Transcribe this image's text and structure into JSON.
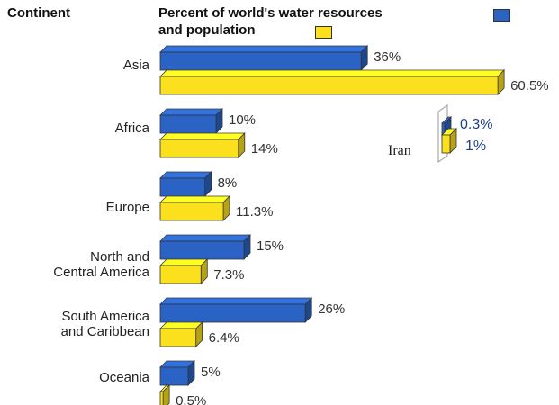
{
  "header": {
    "column_label": "Continent",
    "title_line1": "Percent of world's water resources",
    "title_line2": "and population"
  },
  "chart_data": {
    "type": "bar",
    "orientation": "horizontal",
    "title": "Percent of world's water resources and population",
    "categories": [
      [
        "Asia"
      ],
      [
        "Africa"
      ],
      [
        "Europe"
      ],
      [
        "North and",
        "Central America"
      ],
      [
        "South America",
        "and Caribbean"
      ],
      [
        "Oceania"
      ]
    ],
    "series": [
      {
        "name": "water resources",
        "color": "#2a63c4",
        "values": [
          36,
          10,
          8,
          15,
          26,
          5
        ],
        "labels": [
          "36%",
          "10%",
          "8%",
          "15%",
          "26%",
          "5%"
        ]
      },
      {
        "name": "population",
        "color": "#fbe11d",
        "values": [
          60.5,
          14,
          11.3,
          7.3,
          6.4,
          0.5
        ],
        "labels": [
          "60.5%",
          "14%",
          "11.3%",
          "7.3%",
          "6.4%",
          "0.5%"
        ]
      }
    ],
    "inset": {
      "label": "Iran",
      "water_value": 0.3,
      "water_label": "0.3%",
      "population_value": 1,
      "population_label": "1%"
    },
    "legend": "top, next to title",
    "grid": false
  }
}
